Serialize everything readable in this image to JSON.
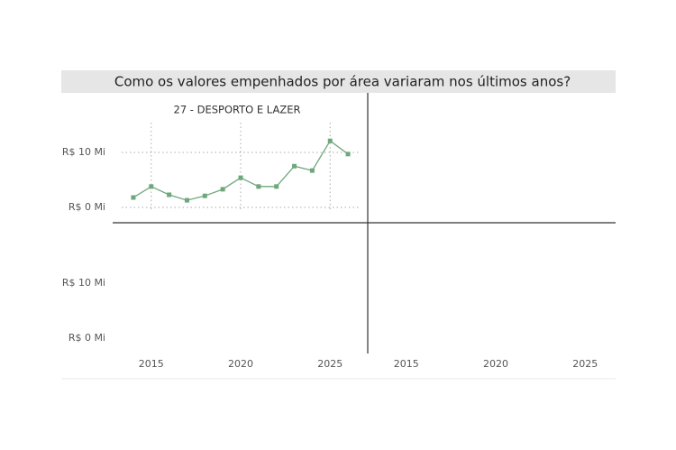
{
  "chart_data": {
    "type": "line",
    "title": "Como os valores empenhados por área variaram nos últimos anos?",
    "panel_title": "27 - DESPORTO E LAZER",
    "x": [
      2014,
      2015,
      2016,
      2017,
      2018,
      2019,
      2020,
      2021,
      2022,
      2023,
      2024,
      2025,
      2026
    ],
    "values": [
      1.8,
      3.8,
      2.3,
      1.3,
      2.1,
      3.3,
      5.4,
      3.8,
      3.8,
      7.5,
      6.7,
      12.1,
      9.7
    ],
    "color": "#6fa77c",
    "xlim": [
      2013.5,
      2026.7
    ],
    "xticks": [
      2015,
      2020,
      2025
    ],
    "ylim": [
      -1,
      15
    ],
    "yticks": [
      {
        "value": 0,
        "label": "R$ 0 Mi"
      },
      {
        "value": 10,
        "label": "R$ 10 Mi"
      }
    ],
    "grid": true
  }
}
